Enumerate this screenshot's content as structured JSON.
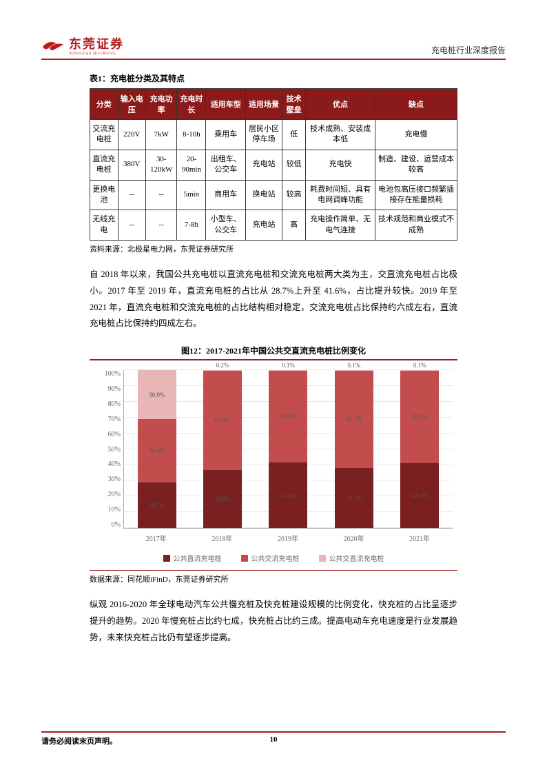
{
  "header": {
    "logo_main": "东莞证券",
    "logo_sub": "DONGGUAN SECURITIES",
    "report_title": "充电桩行业深度报告"
  },
  "table": {
    "title": "表1：充电桩分类及其特点",
    "columns": [
      "分类",
      "输入电压",
      "充电功率",
      "充电时长",
      "适用车型",
      "适用场景",
      "技术壁垒",
      "优点",
      "缺点"
    ],
    "rows": [
      [
        "交流充电桩",
        "220V",
        "7kW",
        "8-10h",
        "乘用车",
        "居民小区停车场",
        "低",
        "技术成熟、安装成本低",
        "充电慢"
      ],
      [
        "直流充电桩",
        "380V",
        "30-120kW",
        "20-90min",
        "出租车、公交车",
        "充电站",
        "较低",
        "充电快",
        "制造、建设、运营成本较高"
      ],
      [
        "更换电池",
        "--",
        "--",
        "5min",
        "商用车",
        "换电站",
        "较高",
        "耗费时间短、具有电网调峰功能",
        "电池包高压接口频繁插接存在能量损耗"
      ],
      [
        "无线充电",
        "--",
        "--",
        "7-8h",
        "小型车、公交车",
        "充电站",
        "高",
        "充电操作简单、无电气连接",
        "技术规范和商业模式不成熟"
      ]
    ],
    "source": "资料来源：北极星电力网，东莞证券研究所"
  },
  "paragraph1": "自 2018 年以来，我国公共充电桩以直流充电桩和交流充电桩两大类为主，交直流充电桩占比极小。2017 年至 2019 年，直流充电桩的占比从 28.7%上升至 41.6%，占比提升较快。2019 年至 2021 年，直流充电桩和交流充电桩的占比结构相对稳定，交流充电桩占比保持约六成左右，直流充电桩占比保持约四成左右。",
  "chart": {
    "title": "图12：2017-2021年中国公共交直流充电桩比例变化",
    "type": "stacked-bar",
    "y_ticks": [
      "100%",
      "90%",
      "80%",
      "70%",
      "60%",
      "50%",
      "40%",
      "30%",
      "20%",
      "10%",
      "0%"
    ],
    "categories": [
      "2017年",
      "2018年",
      "2019年",
      "2020年",
      "2021年"
    ],
    "series": [
      {
        "name": "公共直流充电桩",
        "color": "#7a2020",
        "values": [
          28.7,
          36.6,
          41.6,
          38.3,
          41.0
        ],
        "labels": [
          "28.7%",
          "36.6%",
          "41.6%",
          "38.3%",
          "41.0%"
        ]
      },
      {
        "name": "公共交流充电桩",
        "color": "#c34d4d",
        "values": [
          40.4,
          63.3,
          58.3,
          61.7,
          59.0
        ],
        "labels": [
          "40.4%",
          "63.3%",
          "58.3%",
          "61.7%",
          "59.0%"
        ]
      },
      {
        "name": "公共交直流充电桩",
        "color": "#e8b6b6",
        "values": [
          30.9,
          0.2,
          0.1,
          0.1,
          0.1
        ],
        "labels": [
          "30.9%",
          "0.2%",
          "0.1%",
          "0.1%",
          "0.1%"
        ]
      }
    ],
    "background_color": "#ffffff",
    "grid_color": "#e8e8e8",
    "ylim": [
      0,
      100
    ],
    "source": "数据来源：同花顺iFinD，东莞证券研究所"
  },
  "paragraph2": "纵观 2016-2020 年全球电动汽车公共慢充桩及快充桩建设规模的比例变化，快充桩的占比呈逐步提升的趋势。2020 年慢充桩占比约七成，快充桩占比约三成。提高电动车充电速度是行业发展趋势，未来快充桩占比仍有望逐步提高。",
  "footer": {
    "disclaimer": "请务必阅读末页声明。",
    "page_number": "10"
  }
}
